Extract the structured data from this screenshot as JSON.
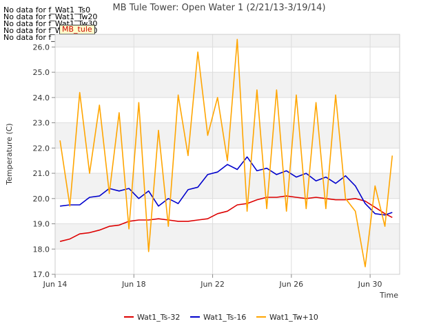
{
  "chart_data": {
    "type": "line",
    "title": "MB Tule Tower: Open Water 1 (2/21/13-3/19/14)",
    "xlabel": "Time",
    "ylabel": "Temperature (C)",
    "xlim": [
      "2014-06-14",
      "2014-07-01T12:00"
    ],
    "ylim": [
      17.0,
      26.5
    ],
    "x_ticks": [
      "Jun 14",
      "Jun 18",
      "Jun 22",
      "Jun 26",
      "Jun 30"
    ],
    "y_ticks": [
      "17.0",
      "18.0",
      "19.0",
      "20.0",
      "21.0",
      "22.0",
      "23.0",
      "24.0",
      "25.0",
      "26.0"
    ],
    "grid": true,
    "legend": "bottom",
    "badge": "MB_tule",
    "no_data_messages": [
      "No data for f_Wat1_Ts0",
      "No data for f_Wat1_Tw20",
      "No data for f_Wat1_Tw30",
      "No data for f_Wat1_Tw40",
      "No data for f_Wat1_Tw50"
    ],
    "series": [
      {
        "name": "Wat1_Ts-32",
        "color": "#dd0000",
        "x": [
          "2014-06-14T06:00",
          "2014-06-14T18:00",
          "2014-06-15T06:00",
          "2014-06-15T18:00",
          "2014-06-16T06:00",
          "2014-06-16T18:00",
          "2014-06-17T06:00",
          "2014-06-17T18:00",
          "2014-06-18T06:00",
          "2014-06-18T18:00",
          "2014-06-19T06:00",
          "2014-06-19T18:00",
          "2014-06-20T06:00",
          "2014-06-20T18:00",
          "2014-06-21T06:00",
          "2014-06-21T18:00",
          "2014-06-22T06:00",
          "2014-06-22T18:00",
          "2014-06-23T06:00",
          "2014-06-23T18:00",
          "2014-06-24T06:00",
          "2014-06-24T18:00",
          "2014-06-25T06:00",
          "2014-06-25T18:00",
          "2014-06-26T06:00",
          "2014-06-26T18:00",
          "2014-06-27T06:00",
          "2014-06-27T18:00",
          "2014-06-28T06:00",
          "2014-06-28T18:00",
          "2014-06-29T06:00",
          "2014-06-29T18:00",
          "2014-06-30T06:00",
          "2014-06-30T18:00",
          "2014-07-01T03:00"
        ],
        "y": [
          18.3,
          18.4,
          18.6,
          18.65,
          18.75,
          18.9,
          18.95,
          19.1,
          19.15,
          19.15,
          19.2,
          19.15,
          19.1,
          19.1,
          19.15,
          19.2,
          19.4,
          19.5,
          19.75,
          19.8,
          19.95,
          20.05,
          20.05,
          20.1,
          20.05,
          20.0,
          20.05,
          20.0,
          19.95,
          19.95,
          20.0,
          19.9,
          19.65,
          19.4,
          19.25
        ]
      },
      {
        "name": "Wat1_Ts-16",
        "color": "#0000cc",
        "x": [
          "2014-06-14T06:00",
          "2014-06-14T18:00",
          "2014-06-15T06:00",
          "2014-06-15T18:00",
          "2014-06-16T06:00",
          "2014-06-16T18:00",
          "2014-06-17T06:00",
          "2014-06-17T18:00",
          "2014-06-18T06:00",
          "2014-06-18T18:00",
          "2014-06-19T06:00",
          "2014-06-19T18:00",
          "2014-06-20T06:00",
          "2014-06-20T18:00",
          "2014-06-21T06:00",
          "2014-06-21T18:00",
          "2014-06-22T06:00",
          "2014-06-22T18:00",
          "2014-06-23T06:00",
          "2014-06-23T18:00",
          "2014-06-24T06:00",
          "2014-06-24T18:00",
          "2014-06-25T06:00",
          "2014-06-25T18:00",
          "2014-06-26T06:00",
          "2014-06-26T18:00",
          "2014-06-27T06:00",
          "2014-06-27T18:00",
          "2014-06-28T06:00",
          "2014-06-28T18:00",
          "2014-06-29T06:00",
          "2014-06-29T18:00",
          "2014-06-30T06:00",
          "2014-06-30T18:00",
          "2014-07-01T03:00"
        ],
        "y": [
          19.7,
          19.75,
          19.75,
          20.05,
          20.1,
          20.4,
          20.3,
          20.4,
          20.0,
          20.3,
          19.7,
          20.0,
          19.8,
          20.35,
          20.45,
          20.95,
          21.05,
          21.35,
          21.15,
          21.65,
          21.1,
          21.2,
          20.95,
          21.1,
          20.85,
          21.0,
          20.7,
          20.85,
          20.6,
          20.9,
          20.5,
          19.8,
          19.4,
          19.35,
          19.45
        ]
      },
      {
        "name": "Wat1_Tw+10",
        "color": "#ffa500",
        "x": [
          "2014-06-14T06:00",
          "2014-06-14T18:00",
          "2014-06-15T06:00",
          "2014-06-15T18:00",
          "2014-06-16T06:00",
          "2014-06-16T18:00",
          "2014-06-17T06:00",
          "2014-06-17T18:00",
          "2014-06-18T06:00",
          "2014-06-18T18:00",
          "2014-06-19T06:00",
          "2014-06-19T18:00",
          "2014-06-20T06:00",
          "2014-06-20T18:00",
          "2014-06-21T06:00",
          "2014-06-21T18:00",
          "2014-06-22T06:00",
          "2014-06-22T18:00",
          "2014-06-23T06:00",
          "2014-06-23T18:00",
          "2014-06-24T06:00",
          "2014-06-24T18:00",
          "2014-06-25T06:00",
          "2014-06-25T18:00",
          "2014-06-26T06:00",
          "2014-06-26T18:00",
          "2014-06-27T06:00",
          "2014-06-27T18:00",
          "2014-06-28T06:00",
          "2014-06-28T18:00",
          "2014-06-29T06:00",
          "2014-06-29T18:00",
          "2014-06-30T06:00",
          "2014-06-30T18:00",
          "2014-07-01T03:00"
        ],
        "y": [
          22.3,
          19.7,
          24.2,
          21.0,
          23.7,
          20.2,
          23.4,
          18.8,
          23.8,
          17.9,
          22.7,
          18.9,
          24.1,
          21.7,
          25.8,
          22.5,
          24.0,
          21.5,
          26.3,
          19.5,
          24.3,
          19.6,
          24.3,
          19.5,
          24.1,
          19.6,
          23.8,
          19.6,
          24.1,
          20.0,
          19.5,
          17.3,
          20.5,
          18.9,
          21.7
        ]
      }
    ]
  }
}
